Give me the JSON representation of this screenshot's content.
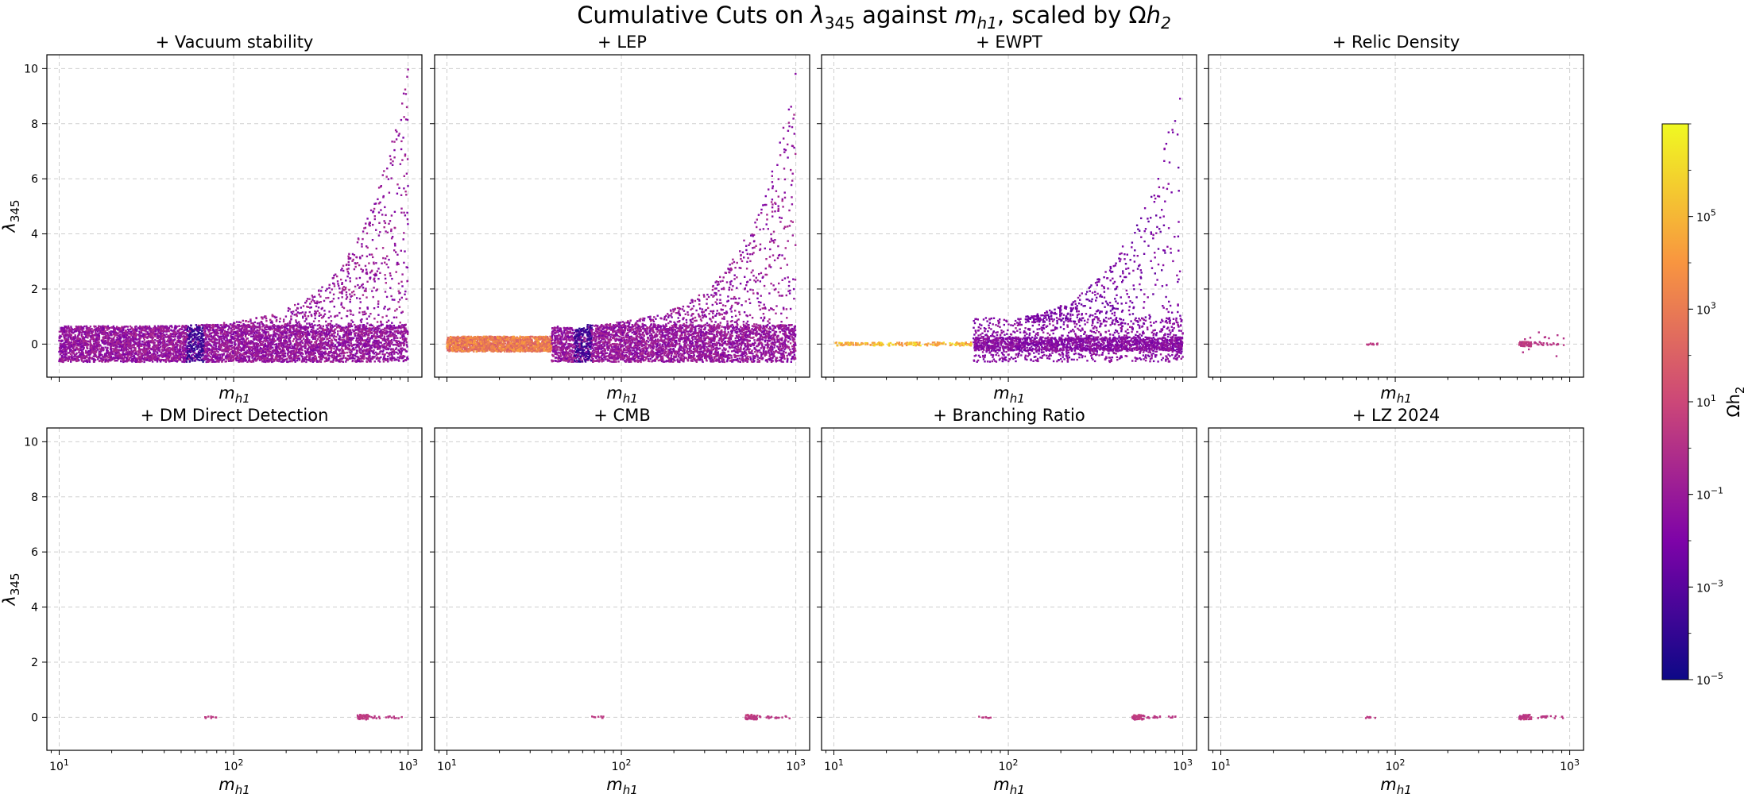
{
  "figure": {
    "title": "Cumulative Cuts on λ345 against mh1, scaled by Ωh2",
    "title_parts": {
      "pre": "Cumulative Cuts on ",
      "lambda": "λ",
      "lambda_sub": "345",
      "mid": " against ",
      "m": "m",
      "m_sub": "h1",
      "post": ", scaled by Ω",
      "h": "h",
      "h_sub": "2"
    }
  },
  "chart_data": {
    "type": "scatter",
    "layout": "2x4 grid of panels, shared axes",
    "x_scale": "log",
    "x_range": [
      8.5,
      1200
    ],
    "y_range": [
      -1.2,
      10.5
    ],
    "x_label": {
      "main": "m",
      "sub": "h1"
    },
    "y_label": {
      "main": "λ",
      "sub": "345"
    },
    "x_ticks": [
      {
        "value": 10,
        "base": "10",
        "exp": "1"
      },
      {
        "value": 100,
        "base": "10",
        "exp": "2"
      },
      {
        "value": 1000,
        "base": "10",
        "exp": "3"
      }
    ],
    "y_ticks": [
      {
        "value": 0,
        "label": "0"
      },
      {
        "value": 2,
        "label": "2"
      },
      {
        "value": 4,
        "label": "4"
      },
      {
        "value": 6,
        "label": "6"
      },
      {
        "value": 8,
        "label": "8"
      },
      {
        "value": 10,
        "label": "10"
      }
    ],
    "grid": true,
    "panels": [
      {
        "title": "+ Vacuum stability"
      },
      {
        "title": "+ LEP"
      },
      {
        "title": "+ EWPT"
      },
      {
        "title": "+ Relic Density"
      },
      {
        "title": "+ DM Direct Detection"
      },
      {
        "title": "+ CMB"
      },
      {
        "title": "+ Branching Ratio"
      },
      {
        "title": "+ LZ 2024"
      }
    ],
    "colorbar": {
      "label": {
        "main": "Ωh",
        "sub": "2"
      },
      "scale": "log",
      "range": [
        1e-05,
        10000000.0
      ],
      "colormap": "plasma",
      "colors": [
        "#0d0887",
        "#7e03a8",
        "#cc4778",
        "#f89540",
        "#f0f921"
      ],
      "ticks": [
        {
          "value": 1e-05,
          "base": "10",
          "exp": "−5"
        },
        {
          "value": 0.001,
          "base": "10",
          "exp": "−3"
        },
        {
          "value": 0.1,
          "base": "10",
          "exp": "−1"
        },
        {
          "value": 10,
          "base": "10",
          "exp": "1"
        },
        {
          "value": 1000,
          "base": "10",
          "exp": "3"
        },
        {
          "value": 100000,
          "base": "10",
          "exp": "5"
        }
      ]
    }
  }
}
